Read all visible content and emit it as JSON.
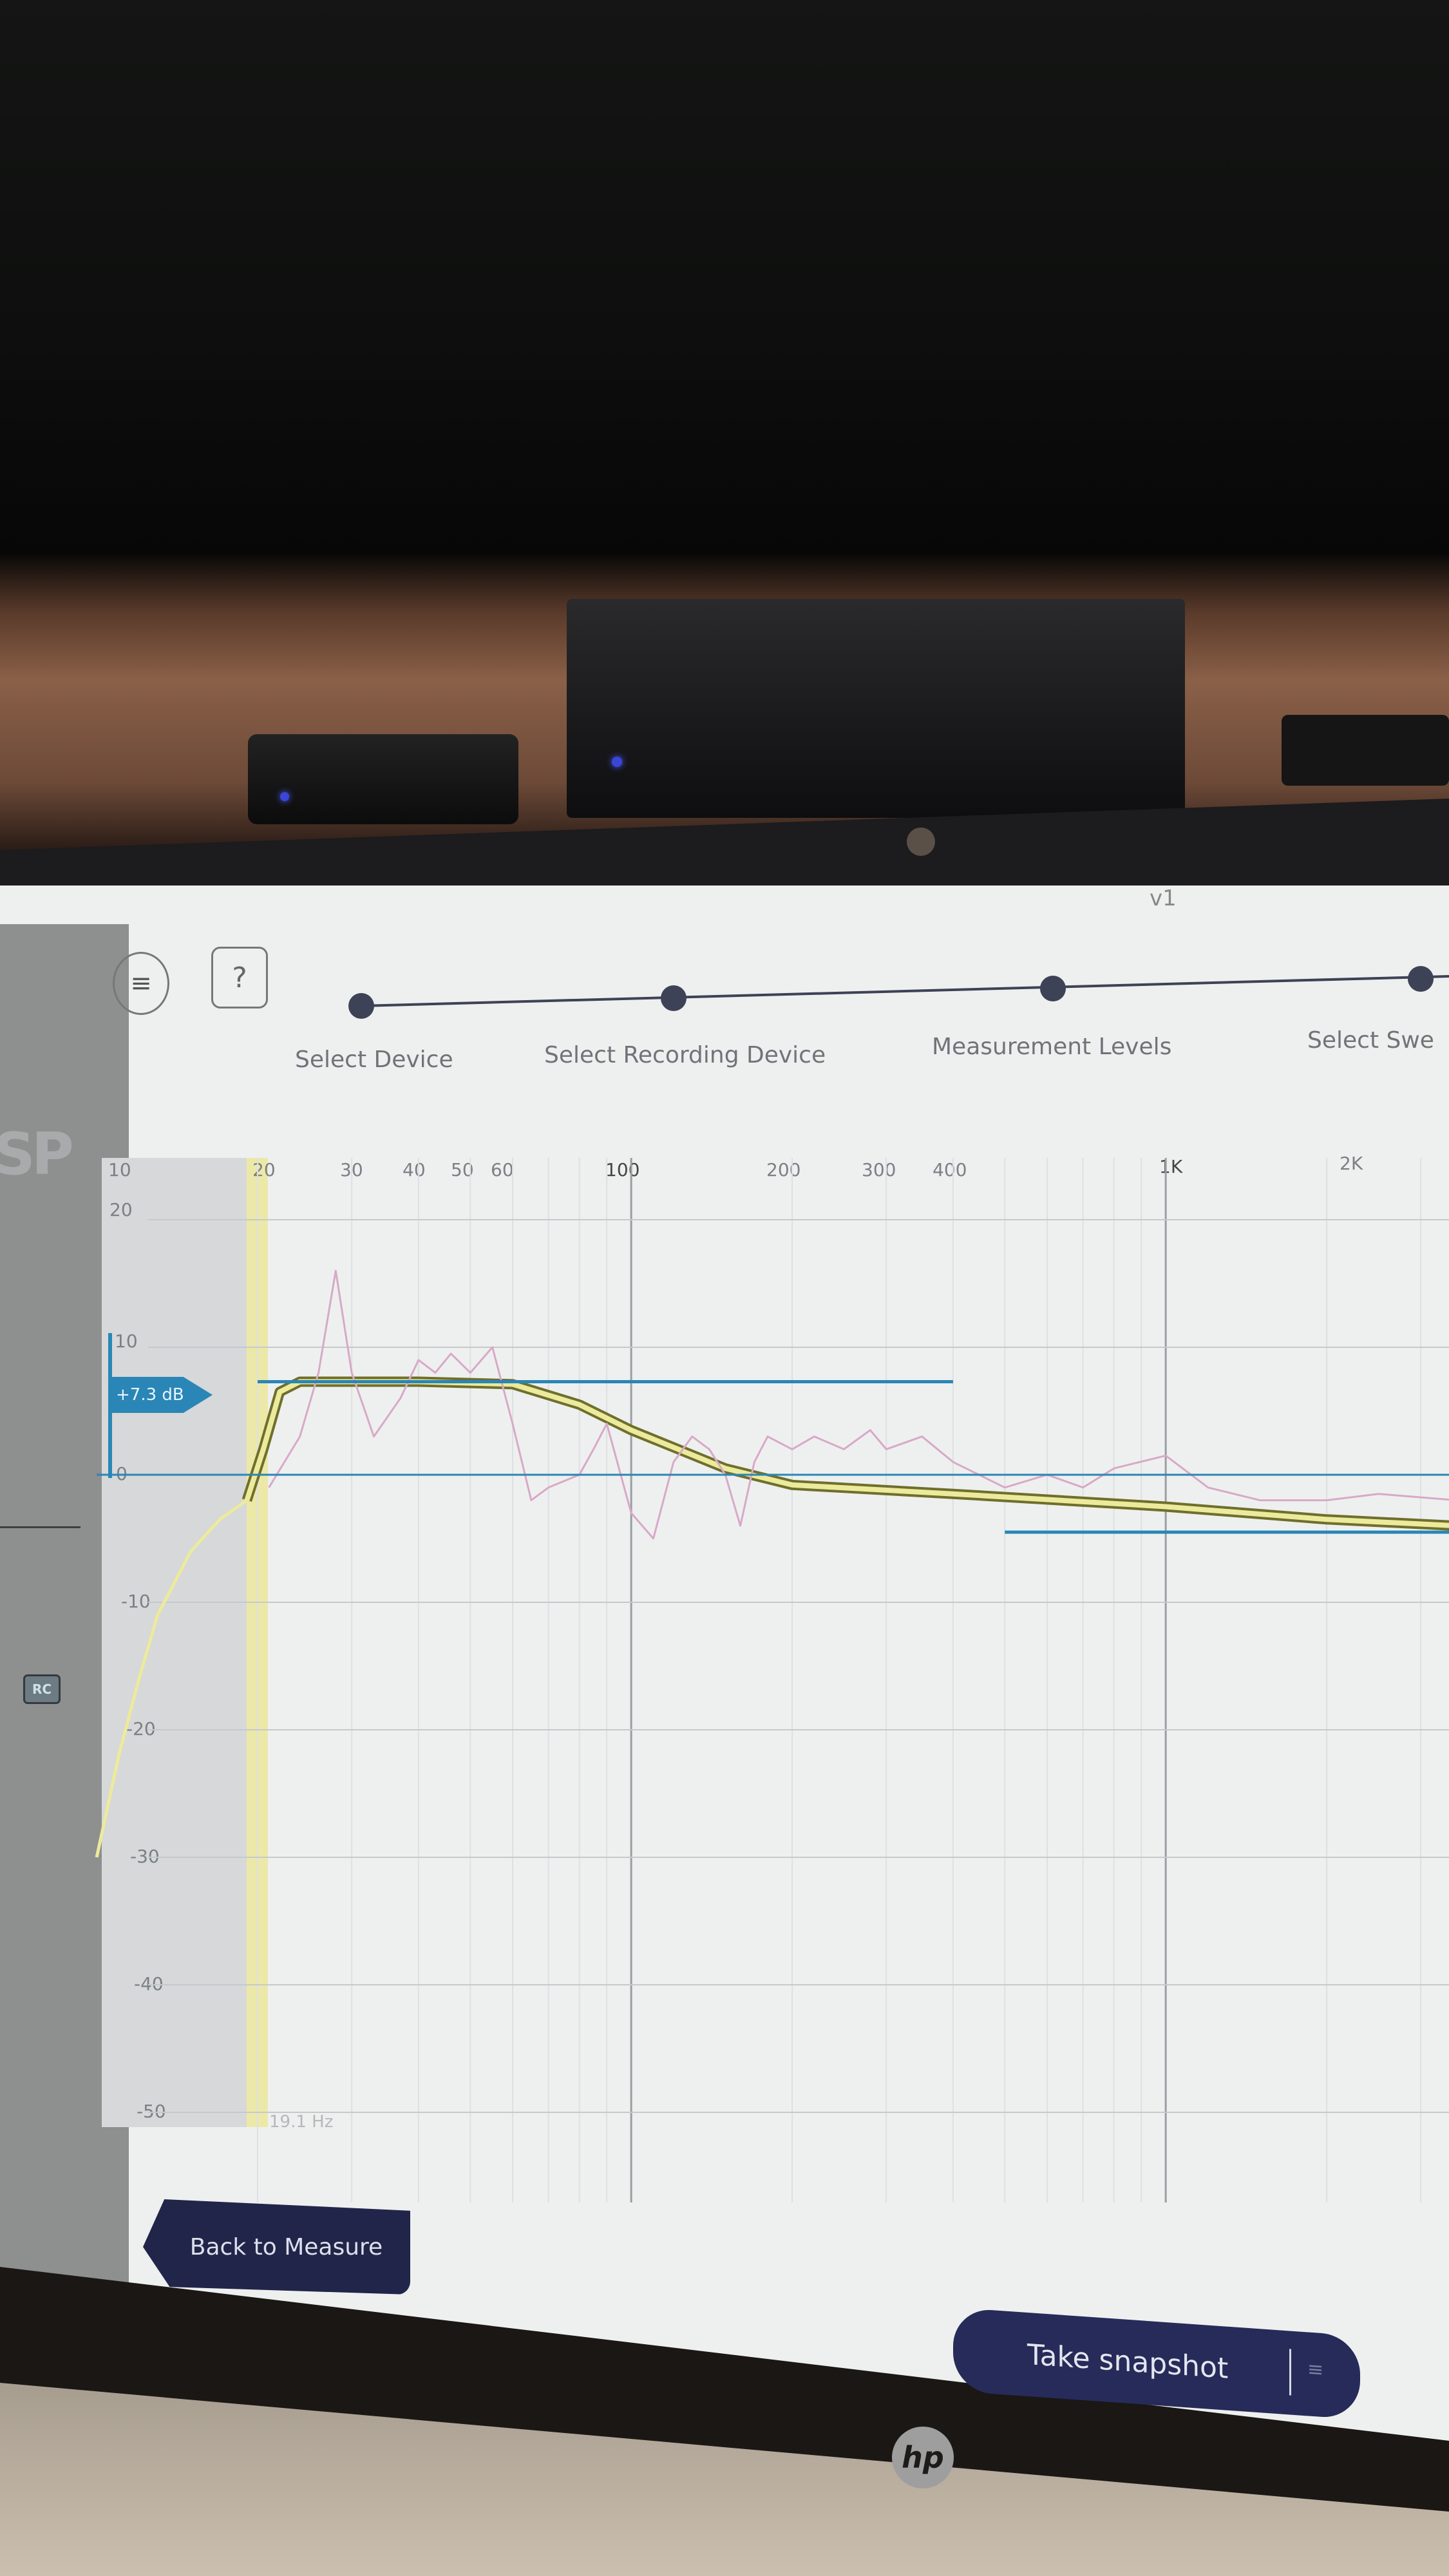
{
  "app": {
    "version": "v1",
    "menu_icon": "hamburger-icon",
    "help_label": "?",
    "sidebar_badge": "RC",
    "sidebar_logo": "SP"
  },
  "stepper": {
    "steps": [
      {
        "label": "Select Device"
      },
      {
        "label": "Select Recording Device"
      },
      {
        "label": "Measurement Levels"
      },
      {
        "label": "Select Swe"
      }
    ],
    "color": "#3d4256"
  },
  "chart_data": {
    "type": "line",
    "x_scale": "log",
    "y_unit": "dB",
    "x_ticks": [
      "10",
      "20",
      "30",
      "40",
      "50",
      "60",
      "100",
      "200",
      "300",
      "400",
      "1K",
      "2K"
    ],
    "x_tick_values": [
      10,
      20,
      30,
      40,
      50,
      60,
      100,
      200,
      300,
      400,
      1000,
      2000
    ],
    "y_ticks": [
      "20",
      "10",
      "0",
      "-10",
      "-20",
      "-30",
      "-40",
      "-50"
    ],
    "y_tick_values": [
      20,
      10,
      0,
      -10,
      -20,
      -30,
      -40,
      -50
    ],
    "ylim": [
      -50,
      20
    ],
    "grid": true,
    "gain_marker": "+7.3 dB",
    "cutoff_label": "19.1 Hz",
    "series": [
      {
        "role": "target",
        "color": "#8a8a3a",
        "x": [
          19.1,
          20.5,
          22,
          24,
          40,
          60,
          80,
          100,
          150,
          200,
          400,
          1000,
          2000,
          3500
        ],
        "y": [
          -2,
          2,
          6.5,
          7.3,
          7.3,
          7.1,
          5.5,
          3.5,
          0.5,
          -0.8,
          -1.5,
          -2.5,
          -3.5,
          -4
        ]
      },
      {
        "role": "below-cutoff",
        "color": "#ecea9c",
        "x": [
          10,
          11,
          12,
          13,
          15,
          17,
          19.1
        ],
        "y": [
          -30,
          -22,
          -16,
          -11,
          -6,
          -3.5,
          -2
        ]
      },
      {
        "role": "measurement",
        "color": "#d8a9c8",
        "x": [
          21,
          24,
          26,
          28,
          30,
          33,
          37,
          40,
          43,
          46,
          50,
          55,
          60,
          65,
          70,
          80,
          85,
          90,
          100,
          110,
          120,
          130,
          140,
          150,
          160,
          170,
          180,
          200,
          220,
          250,
          280,
          300,
          350,
          400,
          500,
          600,
          700,
          800,
          1000,
          1200,
          1500,
          2000,
          2500,
          3500
        ],
        "y": [
          -1,
          3,
          8,
          16,
          8,
          3,
          6,
          9,
          8,
          9.5,
          8,
          10,
          4,
          -2,
          -1,
          0,
          2,
          4,
          -3,
          -5,
          1,
          3,
          2,
          0,
          -4,
          1,
          3,
          2,
          3,
          2,
          3.5,
          2,
          3,
          1,
          -1,
          0,
          -1,
          0.5,
          1.5,
          -1,
          -2,
          -2,
          -1.5,
          -2
        ]
      },
      {
        "role": "boost-level",
        "color": "#2a86b6",
        "x": [
          20,
          400
        ],
        "y": [
          7.3,
          7.3
        ]
      },
      {
        "role": "zero-line",
        "color": "#2a86b6",
        "x": [
          10,
          3500
        ],
        "y": [
          0,
          0
        ]
      },
      {
        "role": "cut-level",
        "color": "#2a86b6",
        "x": [
          500,
          3500
        ],
        "y": [
          -4.5,
          -4.5
        ]
      }
    ]
  },
  "buttons": {
    "back": "Back to Measure",
    "snapshot": "Take snapshot",
    "snapshot_dropdown_icon": "list-icon"
  },
  "hardware": {
    "brand_logo": "hp"
  }
}
